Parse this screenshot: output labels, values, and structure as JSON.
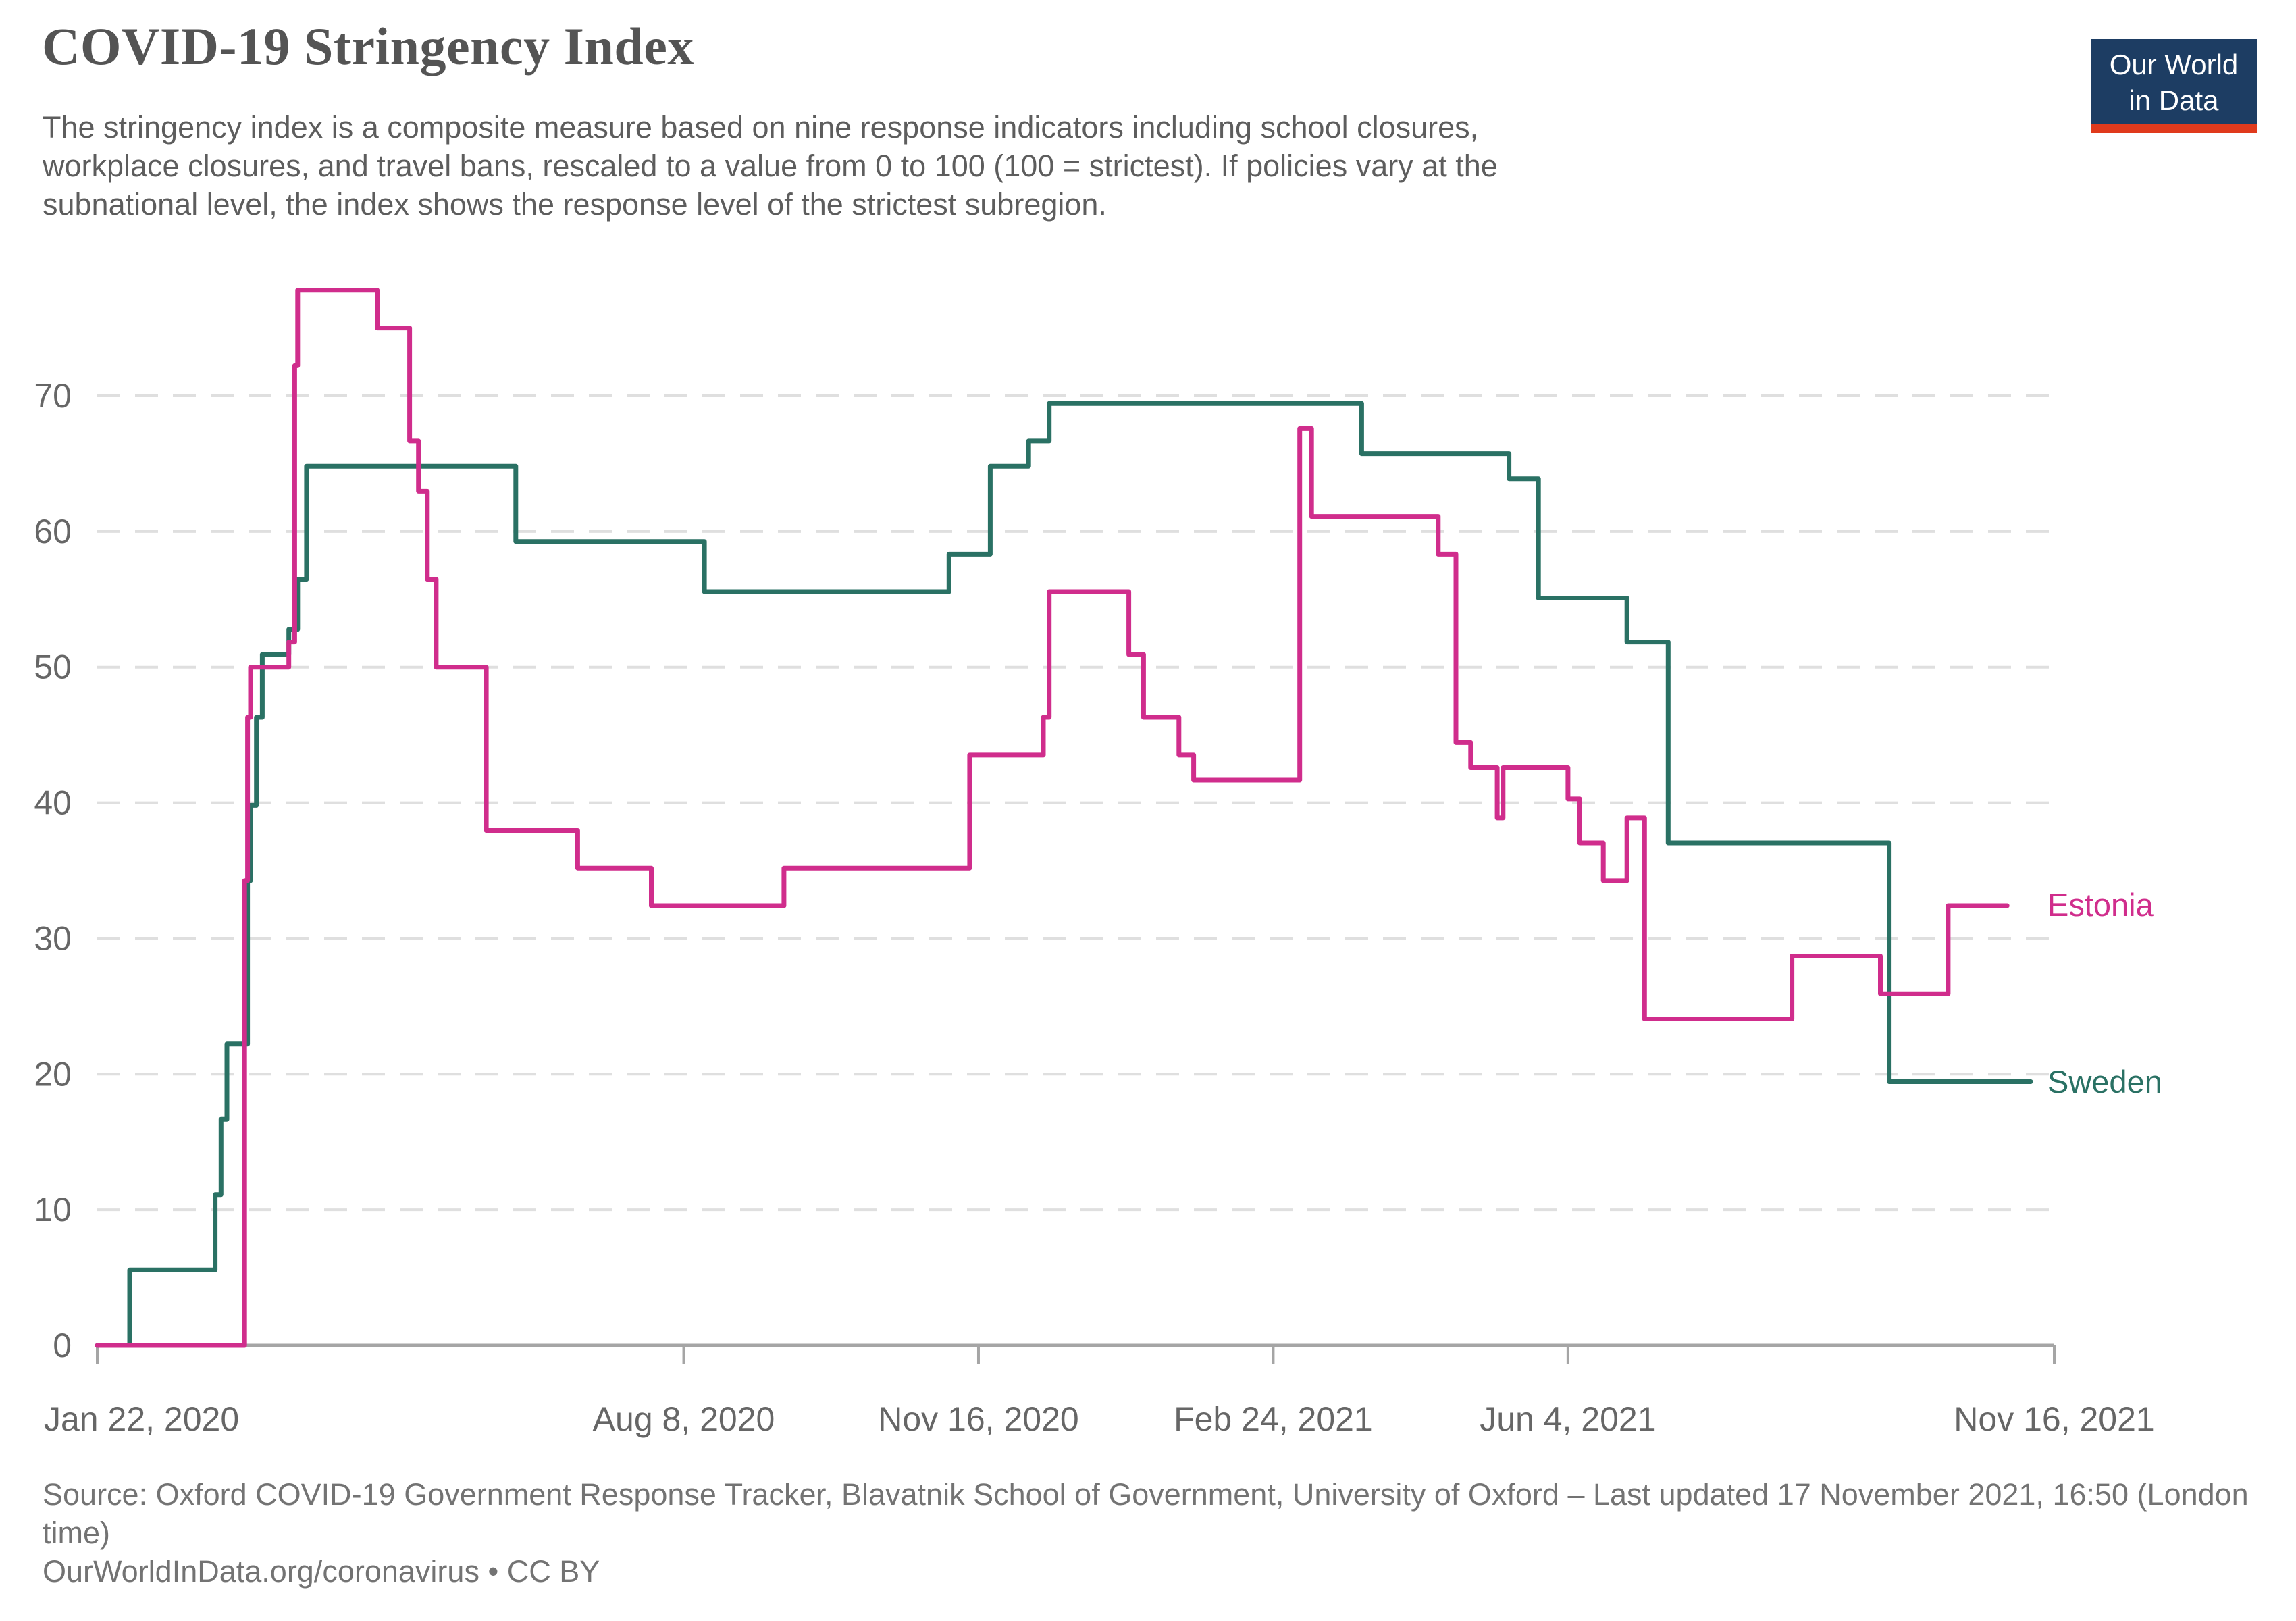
{
  "header": {
    "subtitle_lines": [
      "The stringency index is a composite measure based on nine response indicators including school closures,",
      "workplace closures, and travel bans, rescaled to a value from 0 to 100 (100 = strictest). If policies vary at the",
      "subnational level, the index shows the response level of the strictest subregion."
    ]
  },
  "logo": {
    "line1": "Our World",
    "line2": "in Data"
  },
  "footer": {
    "source": "Source: Oxford COVID-19 Government Response Tracker, Blavatnik School of Government, University of Oxford – Last updated 17 November 2021, 16:50 (London time)",
    "link_line": "OurWorldInData.org/coronavirus • CC BY"
  },
  "colors": {
    "gridline": "#dfdfdf",
    "axis": "#a5a5a5",
    "tick_label": "#666666",
    "title_text": "#545454",
    "subtitle_text": "#5d5d5d",
    "source_text": "#737373",
    "logo_bg": "#1d3d63",
    "logo_red": "#e03a1c"
  },
  "chart_data": {
    "type": "line",
    "title": "COVID-19 Stringency Index",
    "xlabel": "",
    "ylabel": "",
    "grid": "horizontal-dashed",
    "legend_position": "right-of-line-ends",
    "x_start_date": "Jan 22, 2020",
    "xlim_days": [
      0,
      664
    ],
    "ylim": [
      0,
      80
    ],
    "y_ticks": [
      0,
      10,
      20,
      30,
      40,
      50,
      60,
      70
    ],
    "x_ticks": [
      {
        "label": "Jan 22, 2020",
        "day": 0
      },
      {
        "label": "Aug 8, 2020",
        "day": 199
      },
      {
        "label": "Nov 16, 2020",
        "day": 299
      },
      {
        "label": "Feb 24, 2021",
        "day": 399
      },
      {
        "label": "Jun 4, 2021",
        "day": 499
      },
      {
        "label": "Nov 16, 2021",
        "day": 664
      }
    ],
    "series": [
      {
        "name": "Estonia",
        "color": "#d02d8c",
        "end_day": 648,
        "points": [
          [
            0,
            0
          ],
          [
            50,
            34.26
          ],
          [
            51,
            46.3
          ],
          [
            52,
            50.0
          ],
          [
            65,
            51.85
          ],
          [
            67,
            72.22
          ],
          [
            68,
            77.78
          ],
          [
            95,
            75.0
          ],
          [
            106,
            66.67
          ],
          [
            109,
            62.96
          ],
          [
            112,
            56.48
          ],
          [
            115,
            50.0
          ],
          [
            132,
            37.96
          ],
          [
            163,
            35.19
          ],
          [
            188,
            32.41
          ],
          [
            233,
            35.19
          ],
          [
            296,
            43.52
          ],
          [
            321,
            46.3
          ],
          [
            323,
            55.56
          ],
          [
            350,
            50.93
          ],
          [
            355,
            46.3
          ],
          [
            367,
            43.52
          ],
          [
            372,
            41.67
          ],
          [
            408,
            67.59
          ],
          [
            412,
            61.11
          ],
          [
            455,
            58.33
          ],
          [
            461,
            44.44
          ],
          [
            466,
            42.59
          ],
          [
            475,
            38.89
          ],
          [
            477,
            42.59
          ],
          [
            499,
            40.28
          ],
          [
            503,
            37.04
          ],
          [
            511,
            34.26
          ],
          [
            519,
            38.89
          ],
          [
            525,
            24.07
          ],
          [
            575,
            28.7
          ],
          [
            605,
            25.93
          ],
          [
            628,
            32.41
          ]
        ]
      },
      {
        "name": "Sweden",
        "color": "#2a7164",
        "end_day": 656,
        "points": [
          [
            0,
            0
          ],
          [
            11,
            5.56
          ],
          [
            40,
            11.11
          ],
          [
            42,
            16.67
          ],
          [
            44,
            22.22
          ],
          [
            51,
            34.26
          ],
          [
            52,
            39.81
          ],
          [
            54,
            46.3
          ],
          [
            56,
            50.93
          ],
          [
            65,
            52.78
          ],
          [
            68,
            56.48
          ],
          [
            71,
            64.81
          ],
          [
            142,
            59.26
          ],
          [
            206,
            55.56
          ],
          [
            289,
            58.33
          ],
          [
            303,
            64.81
          ],
          [
            316,
            66.67
          ],
          [
            323,
            69.44
          ],
          [
            429,
            65.74
          ],
          [
            479,
            63.89
          ],
          [
            489,
            55.09
          ],
          [
            519,
            51.85
          ],
          [
            533,
            37.04
          ],
          [
            608,
            19.44
          ]
        ]
      }
    ]
  }
}
